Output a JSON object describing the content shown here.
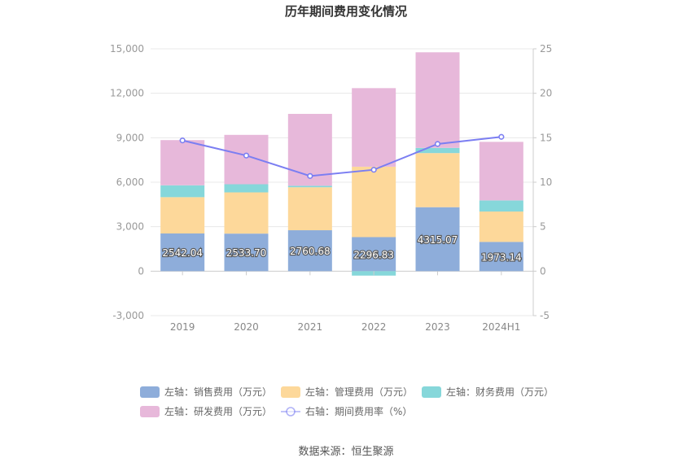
{
  "chart_data": {
    "type": "bar",
    "title": "历年期间费用变化情况",
    "categories": [
      "2019",
      "2020",
      "2021",
      "2022",
      "2023",
      "2024H1"
    ],
    "left_axis": {
      "ticks": [
        "-3,000",
        "0",
        "3,000",
        "6,000",
        "9,000",
        "12,000",
        "15,000"
      ],
      "range": [
        -3000,
        15000
      ]
    },
    "right_axis": {
      "ticks": [
        "-5",
        "0",
        "5",
        "10",
        "15",
        "20",
        "25"
      ],
      "range": [
        -5,
        25
      ]
    },
    "grid": true,
    "legend_position": "bottom",
    "series": [
      {
        "name": "左轴：销售费用（万元）",
        "kind": "bar",
        "axis": "left",
        "color": "#8eadda",
        "values": [
          2542.04,
          2533.7,
          2760.68,
          2296.83,
          4315.07,
          1973.14
        ],
        "show_labels": true
      },
      {
        "name": "左轴：管理费用（万元）",
        "kind": "bar",
        "axis": "left",
        "color": "#fdd89a",
        "values": [
          2450,
          2780,
          2900,
          4750,
          3650,
          2050
        ]
      },
      {
        "name": "左轴：财务费用（万元）",
        "kind": "bar",
        "axis": "left",
        "color": "#86d7da",
        "values": [
          800,
          550,
          100,
          -300,
          350,
          750
        ]
      },
      {
        "name": "左轴：研发费用（万元）",
        "kind": "bar",
        "axis": "left",
        "color": "#e7b8da",
        "values": [
          3050,
          3330,
          4850,
          5300,
          6450,
          3950
        ]
      },
      {
        "name": "右轴：期间费用率（%）",
        "kind": "line",
        "axis": "right",
        "color": "#7b7ef2",
        "values": [
          14.7,
          13.0,
          10.7,
          11.4,
          14.3,
          15.1
        ]
      }
    ],
    "source": "数据来源：恒生聚源"
  }
}
